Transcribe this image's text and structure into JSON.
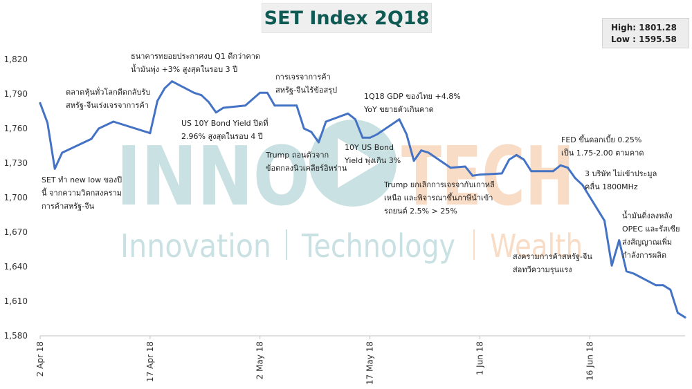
{
  "watermark": {
    "brand_left": "INNO",
    "brand_right": "TECH",
    "tagline": [
      "Innovation",
      "Technology",
      "Wealth"
    ]
  },
  "colors": {
    "line": "#4472c4",
    "title_text": "#0f5a53",
    "watermark_teal": "#c9e1e2",
    "watermark_orange": "#f8dcc6"
  },
  "stats": {
    "high": "High: 1801.28",
    "low": "Low :  1595.58"
  },
  "annotations": [
    {
      "lines": [
        "SET ทำ new low ของปี",
        "นี้ จากความวิตกสงคราม",
        "การค้าสหรัฐ-จีน"
      ]
    },
    {
      "lines": [
        "ตลาดหุ้นทั่วโลกดีดกลับรับ",
        "สหรัฐ-จีนเร่งเจรจาการค้า"
      ]
    },
    {
      "lines": [
        "ธนาคารทยอยประกาศงบ  Q1 ดีกว่าคาด",
        "น้ำมันพุ่ง +3% สูงสุดในรอบ 3 ปี"
      ]
    },
    {
      "lines": [
        "US 10Y Bond Yield ปิดที่",
        "2.96% สูงสุดในรอบ 4 ปี"
      ]
    },
    {
      "lines": [
        "การเจรจาการค้า",
        "สหรัฐ-จีนไร้ข้อสรุป"
      ]
    },
    {
      "lines": [
        "Trump ถอนตัวจาก",
        "ข้อตกลงนิวเคลียร์อิหร่าน"
      ]
    },
    {
      "lines": [
        "10Y US Bond",
        "Yield พุ่งเกิน 3%"
      ]
    },
    {
      "lines": [
        "1Q18 GDP ของไทย  +4.8%",
        "YoY ขยายตัวเกินคาด"
      ]
    },
    {
      "lines": [
        "Trump ยกเลิกการเจรจากับเกาหลี",
        "เหนือ และพิจารณาขึ้นภาษีนำเข้า",
        "รถยนต์ 2.5% > 25%"
      ]
    },
    {
      "lines": [
        "FED ขึ้นดอกเบี้ย  0.25%",
        "เป็น 1.75-2.00 ตามคาด"
      ]
    },
    {
      "lines": [
        "3 บริษัท ไม่เข้าประมูล",
        "คลื่น 1800MHz"
      ]
    },
    {
      "lines": [
        "สงครามการค้าสหรัฐ-จีน",
        "ส่อทวีความรุนแรง"
      ]
    },
    {
      "lines": [
        "น้ำมันดิ่งลงหลัง",
        "OPEC และรัสเซีย",
        "ส่งสัญญาณเพิ่ม",
        "กำลังการผลิต"
      ]
    }
  ],
  "chart_data": {
    "type": "line",
    "title": "SET Index 2Q18",
    "xlabel": "",
    "ylabel": "",
    "ylim": [
      1580,
      1820
    ],
    "yticks": [
      1580,
      1610,
      1640,
      1670,
      1700,
      1730,
      1760,
      1790,
      1820
    ],
    "ytick_labels": [
      "1,580",
      "1,610",
      "1,640",
      "1,670",
      "1,700",
      "1,730",
      "1,760",
      "1,790",
      "1,820"
    ],
    "x_start": "2018-04-02",
    "x_end": "2018-06-29",
    "xticks": [
      "2018-04-02",
      "2018-04-17",
      "2018-05-02",
      "2018-05-17",
      "2018-06-01",
      "2018-06-16"
    ],
    "xtick_labels": [
      "2 Apr 18",
      "17 Apr 18",
      "2 May 18",
      "17 May 18",
      "1 Jun 18",
      "16 Jun 18"
    ],
    "grid": false,
    "legend": "none",
    "x": [
      "2018-04-02",
      "2018-04-03",
      "2018-04-04",
      "2018-04-05",
      "2018-04-09",
      "2018-04-10",
      "2018-04-11",
      "2018-04-12",
      "2018-04-17",
      "2018-04-18",
      "2018-04-19",
      "2018-04-20",
      "2018-04-23",
      "2018-04-24",
      "2018-04-25",
      "2018-04-26",
      "2018-04-27",
      "2018-04-30",
      "2018-05-02",
      "2018-05-03",
      "2018-05-04",
      "2018-05-07",
      "2018-05-08",
      "2018-05-09",
      "2018-05-10",
      "2018-05-11",
      "2018-05-14",
      "2018-05-15",
      "2018-05-16",
      "2018-05-17",
      "2018-05-18",
      "2018-05-21",
      "2018-05-22",
      "2018-05-23",
      "2018-05-24",
      "2018-05-25",
      "2018-05-28",
      "2018-05-30",
      "2018-05-31",
      "2018-06-01",
      "2018-06-04",
      "2018-06-05",
      "2018-06-06",
      "2018-06-07",
      "2018-06-08",
      "2018-06-11",
      "2018-06-12",
      "2018-06-13",
      "2018-06-14",
      "2018-06-15",
      "2018-06-18",
      "2018-06-19",
      "2018-06-20",
      "2018-06-21",
      "2018-06-22",
      "2018-06-25",
      "2018-06-26",
      "2018-06-27",
      "2018-06-28",
      "2018-06-29"
    ],
    "series": [
      {
        "values": [
          1782,
          1765,
          1725,
          1739,
          1751,
          1760,
          1763,
          1766,
          1756,
          1784,
          1795,
          1801,
          1791,
          1789,
          1783,
          1774,
          1778,
          1780,
          1791,
          1791,
          1780,
          1780,
          1760,
          1757,
          1748,
          1766,
          1773,
          1768,
          1752,
          1752,
          1755,
          1768,
          1755,
          1732,
          1741,
          1739,
          1726,
          1727,
          1719,
          1720,
          1721,
          1733,
          1737,
          1733,
          1723,
          1723,
          1728,
          1726,
          1717,
          1711,
          1680,
          1641,
          1663,
          1636,
          1634,
          1624,
          1624,
          1620,
          1600,
          1596
        ]
      }
    ]
  }
}
